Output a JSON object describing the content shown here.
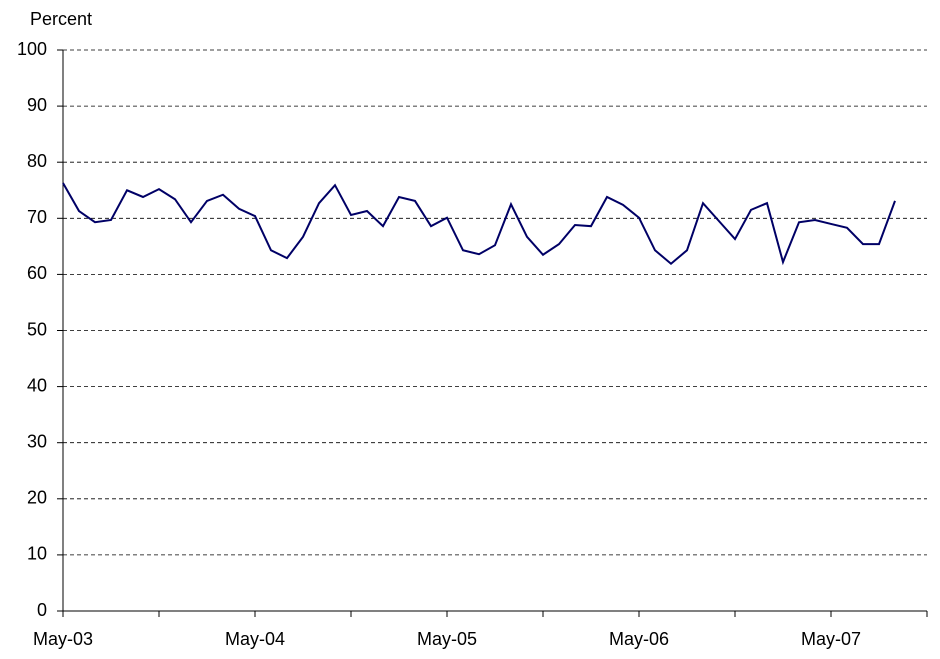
{
  "chart_data": {
    "type": "line",
    "y_label": "Percent",
    "categories": [
      "May-03",
      null,
      null,
      null,
      null,
      null,
      null,
      null,
      null,
      null,
      null,
      null,
      "May-04",
      null,
      null,
      null,
      null,
      null,
      null,
      null,
      null,
      null,
      null,
      null,
      "May-05",
      null,
      null,
      null,
      null,
      null,
      null,
      null,
      null,
      null,
      null,
      null,
      "May-06",
      null,
      null,
      null,
      null,
      null,
      null,
      null,
      null,
      null,
      null,
      null,
      "May-07",
      null,
      null,
      null,
      null,
      null,
      null
    ],
    "series": [
      {
        "color": "#000066",
        "values": [
          76.3,
          71.3,
          69.3,
          69.7,
          75.0,
          73.8,
          75.2,
          73.4,
          69.3,
          73.1,
          74.2,
          71.7,
          70.4,
          64.3,
          62.9,
          66.7,
          72.7,
          75.9,
          70.6,
          71.3,
          68.6,
          73.8,
          73.1,
          68.6,
          70.1,
          64.3,
          63.6,
          65.2,
          72.5,
          66.7,
          63.5,
          65.4,
          68.8,
          68.6,
          73.8,
          72.4,
          70.1,
          64.3,
          61.9,
          64.3,
          72.7,
          69.5,
          66.3,
          71.5,
          72.7,
          62.2,
          69.3,
          69.7,
          69.0,
          68.3,
          65.4,
          65.4,
          73.1,
          null,
          null
        ]
      }
    ],
    "ylim": [
      0,
      100
    ],
    "yticks": [
      0,
      10,
      20,
      30,
      40,
      50,
      60,
      70,
      80,
      90,
      100
    ],
    "grid": true
  }
}
